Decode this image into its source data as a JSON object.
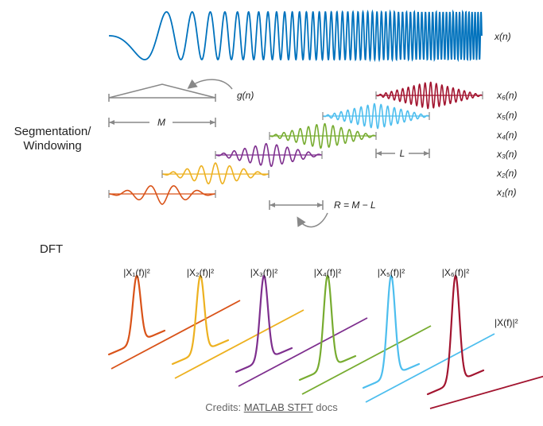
{
  "signal_label": "x(n)",
  "window_label": "g(n)",
  "segment_length_label": "M",
  "overlap_label": "L",
  "hop_label": "R = M − L",
  "section_windowing_line1": "Segmentation/",
  "section_windowing_line2": "Windowing",
  "section_dft": "DFT",
  "segments": [
    {
      "label": "x₁(n)",
      "color": "#d95319"
    },
    {
      "label": "x₂(n)",
      "color": "#edb120"
    },
    {
      "label": "x₃(n)",
      "color": "#7e2f8e"
    },
    {
      "label": "x₄(n)",
      "color": "#77ac30"
    },
    {
      "label": "x₅(n)",
      "color": "#4dbeee"
    },
    {
      "label": "x₆(n)",
      "color": "#a2142f"
    }
  ],
  "spectra": [
    {
      "label": "|X₁(f)|²",
      "color": "#d95319"
    },
    {
      "label": "|X₂(f)|²",
      "color": "#edb120"
    },
    {
      "label": "|X₃(f)|²",
      "color": "#7e2f8e"
    },
    {
      "label": "|X₄(f)|²",
      "color": "#77ac30"
    },
    {
      "label": "|X₅(f)|²",
      "color": "#4dbeee"
    },
    {
      "label": "|X₆(f)|²",
      "color": "#a2142f"
    }
  ],
  "spectrogram_label": "|X(f)|²",
  "colors": {
    "signal": "#0072bd",
    "annotation": "#888888"
  },
  "credits": {
    "prefix": "Credits: ",
    "link": "MATLAB STFT",
    "suffix": " docs"
  }
}
